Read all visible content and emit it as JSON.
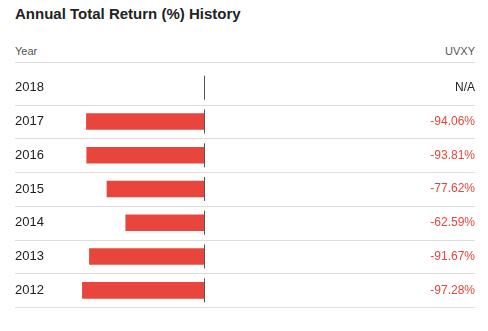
{
  "chart_data": {
    "type": "bar",
    "orientation": "horizontal",
    "title": "Annual Total Return (%) History",
    "ylabel": "Year",
    "categories": [
      "2018",
      "2017",
      "2016",
      "2015",
      "2014",
      "2013",
      "2012"
    ],
    "series": [
      {
        "name": "UVXY",
        "color": "#e8453c",
        "values": [
          null,
          -94.06,
          -93.81,
          -77.62,
          -62.59,
          -91.67,
          -97.28
        ],
        "value_labels": [
          "N/A",
          "-94.06%",
          "-93.81%",
          "-77.62%",
          "-62.59%",
          "-91.67%",
          "-97.28%"
        ]
      }
    ],
    "xlim": [
      -100,
      0
    ],
    "grid": false,
    "tick_labels": "y",
    "data_labels": true
  }
}
